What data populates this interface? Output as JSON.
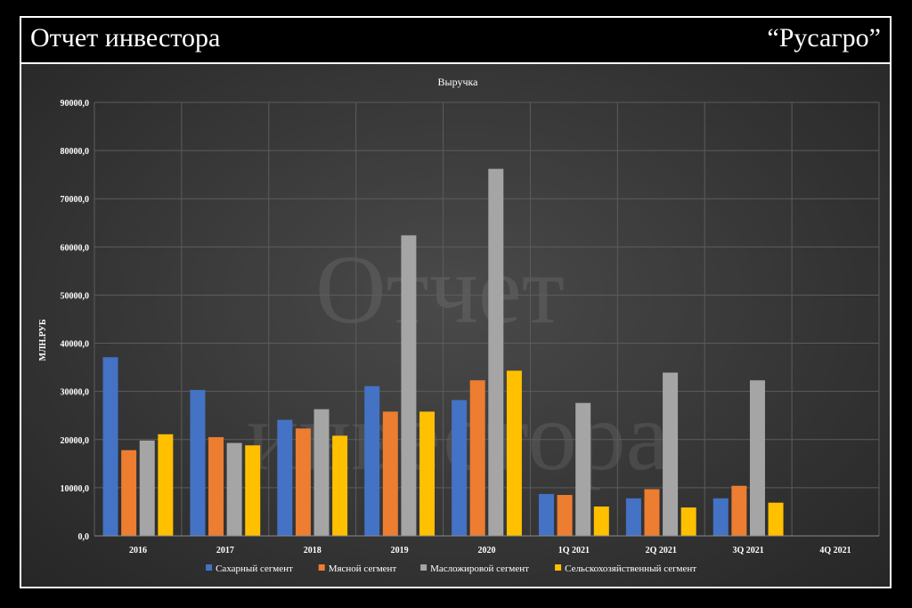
{
  "header": {
    "title": "Отчет инвестора",
    "company": "“Русагро”"
  },
  "watermark": {
    "line1": "Отчет",
    "line2": "инвестора"
  },
  "chart_data": {
    "type": "bar",
    "title": "Выручка",
    "xlabel": "",
    "ylabel": "МЛН.РУБ",
    "ylim": [
      0,
      90000
    ],
    "yticks": [
      0,
      10000,
      20000,
      30000,
      40000,
      50000,
      60000,
      70000,
      80000,
      90000
    ],
    "ytick_labels": [
      "0,0",
      "10000,0",
      "20000,0",
      "30000,0",
      "40000,0",
      "50000,0",
      "60000,0",
      "70000,0",
      "80000,0",
      "90000,0"
    ],
    "grid": true,
    "legend_position": "bottom",
    "categories": [
      "2016",
      "2017",
      "2018",
      "2019",
      "2020",
      "1Q 2021",
      "2Q 2021",
      "3Q 2021",
      "4Q 2021"
    ],
    "series": [
      {
        "name": "Сахарный сегмент",
        "color": "#4472c4",
        "values": [
          37100,
          30300,
          24100,
          31100,
          28200,
          8700,
          7800,
          7800,
          null
        ]
      },
      {
        "name": "Мясной сегмент",
        "color": "#ed7d31",
        "values": [
          17800,
          20500,
          22300,
          25800,
          32300,
          8500,
          9700,
          10400,
          null
        ]
      },
      {
        "name": "Масложировой сегмент",
        "color": "#a5a5a5",
        "values": [
          19800,
          19300,
          26300,
          62400,
          76200,
          27600,
          33900,
          32300,
          null
        ]
      },
      {
        "name": "Сельскохозяйственный сегмент",
        "color": "#ffc000",
        "values": [
          21100,
          18800,
          20800,
          25800,
          34300,
          6100,
          5900,
          6900,
          null
        ]
      }
    ]
  }
}
